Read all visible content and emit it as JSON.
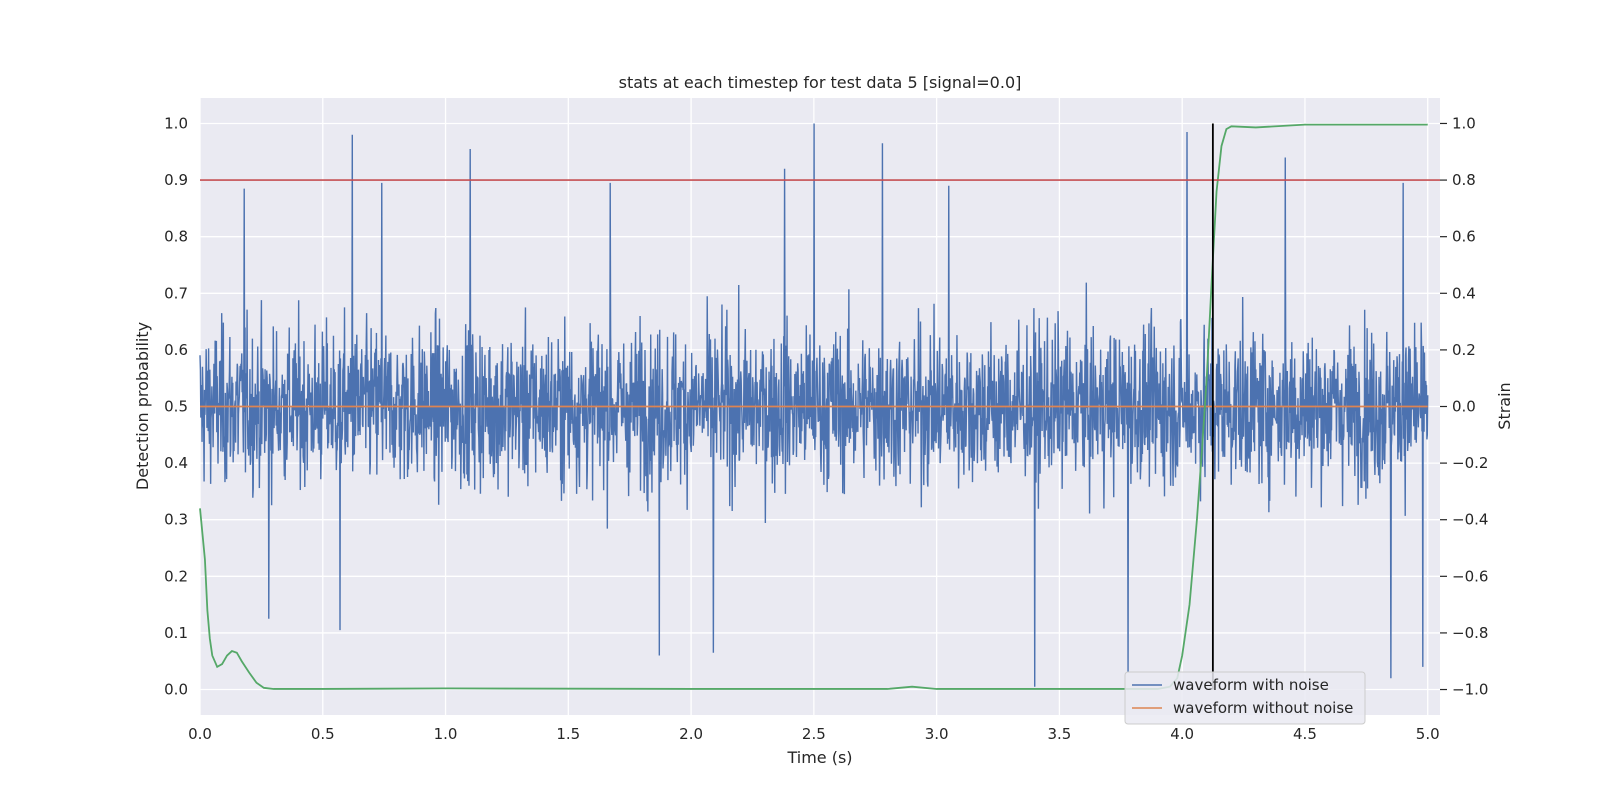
{
  "chart_data": {
    "type": "line",
    "title": "stats at each timestep for test data 5 [signal=0.0]",
    "xlabel": "Time (s)",
    "ylabel": "Detection probability",
    "y2label": "Strain",
    "xlim": [
      0.0,
      5.05
    ],
    "ylim": [
      -0.045,
      1.045
    ],
    "y2lim": [
      -1.09,
      1.09
    ],
    "xticks": [
      0.0,
      0.5,
      1.0,
      1.5,
      2.0,
      2.5,
      3.0,
      3.5,
      4.0,
      4.5,
      5.0
    ],
    "xtick_labels": [
      "0.0",
      "0.5",
      "1.0",
      "1.5",
      "2.0",
      "2.5",
      "3.0",
      "3.5",
      "4.0",
      "4.5",
      "5.0"
    ],
    "yticks": [
      0.0,
      0.1,
      0.2,
      0.3,
      0.4,
      0.5,
      0.6,
      0.7,
      0.8,
      0.9,
      1.0
    ],
    "ytick_labels": [
      "0.0",
      "0.1",
      "0.2",
      "0.3",
      "0.4",
      "0.5",
      "0.6",
      "0.7",
      "0.8",
      "0.9",
      "1.0"
    ],
    "y2ticks": [
      -1.0,
      -0.8,
      -0.6,
      -0.4,
      -0.2,
      0.0,
      0.2,
      0.4,
      0.6,
      0.8,
      1.0
    ],
    "y2tick_labels": [
      "−1.0",
      "−0.8",
      "−0.6",
      "−0.4",
      "−0.2",
      "0.0",
      "0.2",
      "0.4",
      "0.6",
      "0.8",
      "1.0"
    ],
    "grid": true,
    "legend_position": "bottom-right",
    "threshold": {
      "y": 0.9,
      "color": "#c44e52"
    },
    "marker_line": {
      "x": 4.125,
      "color": "#000000"
    },
    "series": [
      {
        "name": "waveform with noise",
        "axis": "right",
        "color": "#4c72b0",
        "kind": "noise",
        "x_range": [
          0.0,
          5.0
        ],
        "n_points": 3000,
        "typical_abs": 0.35,
        "extremes": [
          {
            "x": 0.62,
            "y": 0.96
          },
          {
            "x": 0.74,
            "y": 0.79
          },
          {
            "x": 0.18,
            "y": 0.77
          },
          {
            "x": 1.1,
            "y": 0.91
          },
          {
            "x": 1.67,
            "y": 0.79
          },
          {
            "x": 2.5,
            "y": 1.0
          },
          {
            "x": 2.38,
            "y": 0.84
          },
          {
            "x": 2.78,
            "y": 0.93
          },
          {
            "x": 3.05,
            "y": 0.78
          },
          {
            "x": 4.02,
            "y": 0.97
          },
          {
            "x": 4.42,
            "y": 0.88
          },
          {
            "x": 4.9,
            "y": 0.79
          },
          {
            "x": 0.28,
            "y": -0.75
          },
          {
            "x": 0.57,
            "y": -0.79
          },
          {
            "x": 1.87,
            "y": -0.88
          },
          {
            "x": 2.09,
            "y": -0.87
          },
          {
            "x": 3.4,
            "y": -0.99
          },
          {
            "x": 3.78,
            "y": -0.94
          },
          {
            "x": 4.85,
            "y": -0.96
          },
          {
            "x": 4.98,
            "y": -0.92
          }
        ]
      },
      {
        "name": "waveform without noise",
        "axis": "right",
        "color": "#dd8452",
        "x": [
          0.0,
          5.0
        ],
        "y": [
          0.0,
          0.0
        ]
      },
      {
        "name": "",
        "axis": "left",
        "color": "#55a868",
        "x": [
          0.0,
          0.02,
          0.03,
          0.04,
          0.05,
          0.07,
          0.09,
          0.11,
          0.13,
          0.15,
          0.17,
          0.2,
          0.23,
          0.26,
          0.3,
          0.5,
          1.0,
          2.0,
          2.8,
          2.9,
          3.0,
          3.5,
          3.9,
          3.95,
          3.98,
          4.0,
          4.03,
          4.06,
          4.08,
          4.1,
          4.12,
          4.14,
          4.16,
          4.18,
          4.2,
          4.3,
          4.5,
          5.0
        ],
        "y": [
          0.32,
          0.23,
          0.14,
          0.09,
          0.06,
          0.04,
          0.045,
          0.06,
          0.068,
          0.065,
          0.05,
          0.03,
          0.012,
          0.003,
          0.001,
          0.001,
          0.002,
          0.001,
          0.001,
          0.005,
          0.001,
          0.001,
          0.001,
          0.005,
          0.02,
          0.06,
          0.15,
          0.3,
          0.42,
          0.55,
          0.72,
          0.88,
          0.96,
          0.99,
          0.995,
          0.993,
          0.998,
          0.998
        ]
      }
    ],
    "legend": [
      "waveform with noise",
      "waveform without noise"
    ]
  }
}
